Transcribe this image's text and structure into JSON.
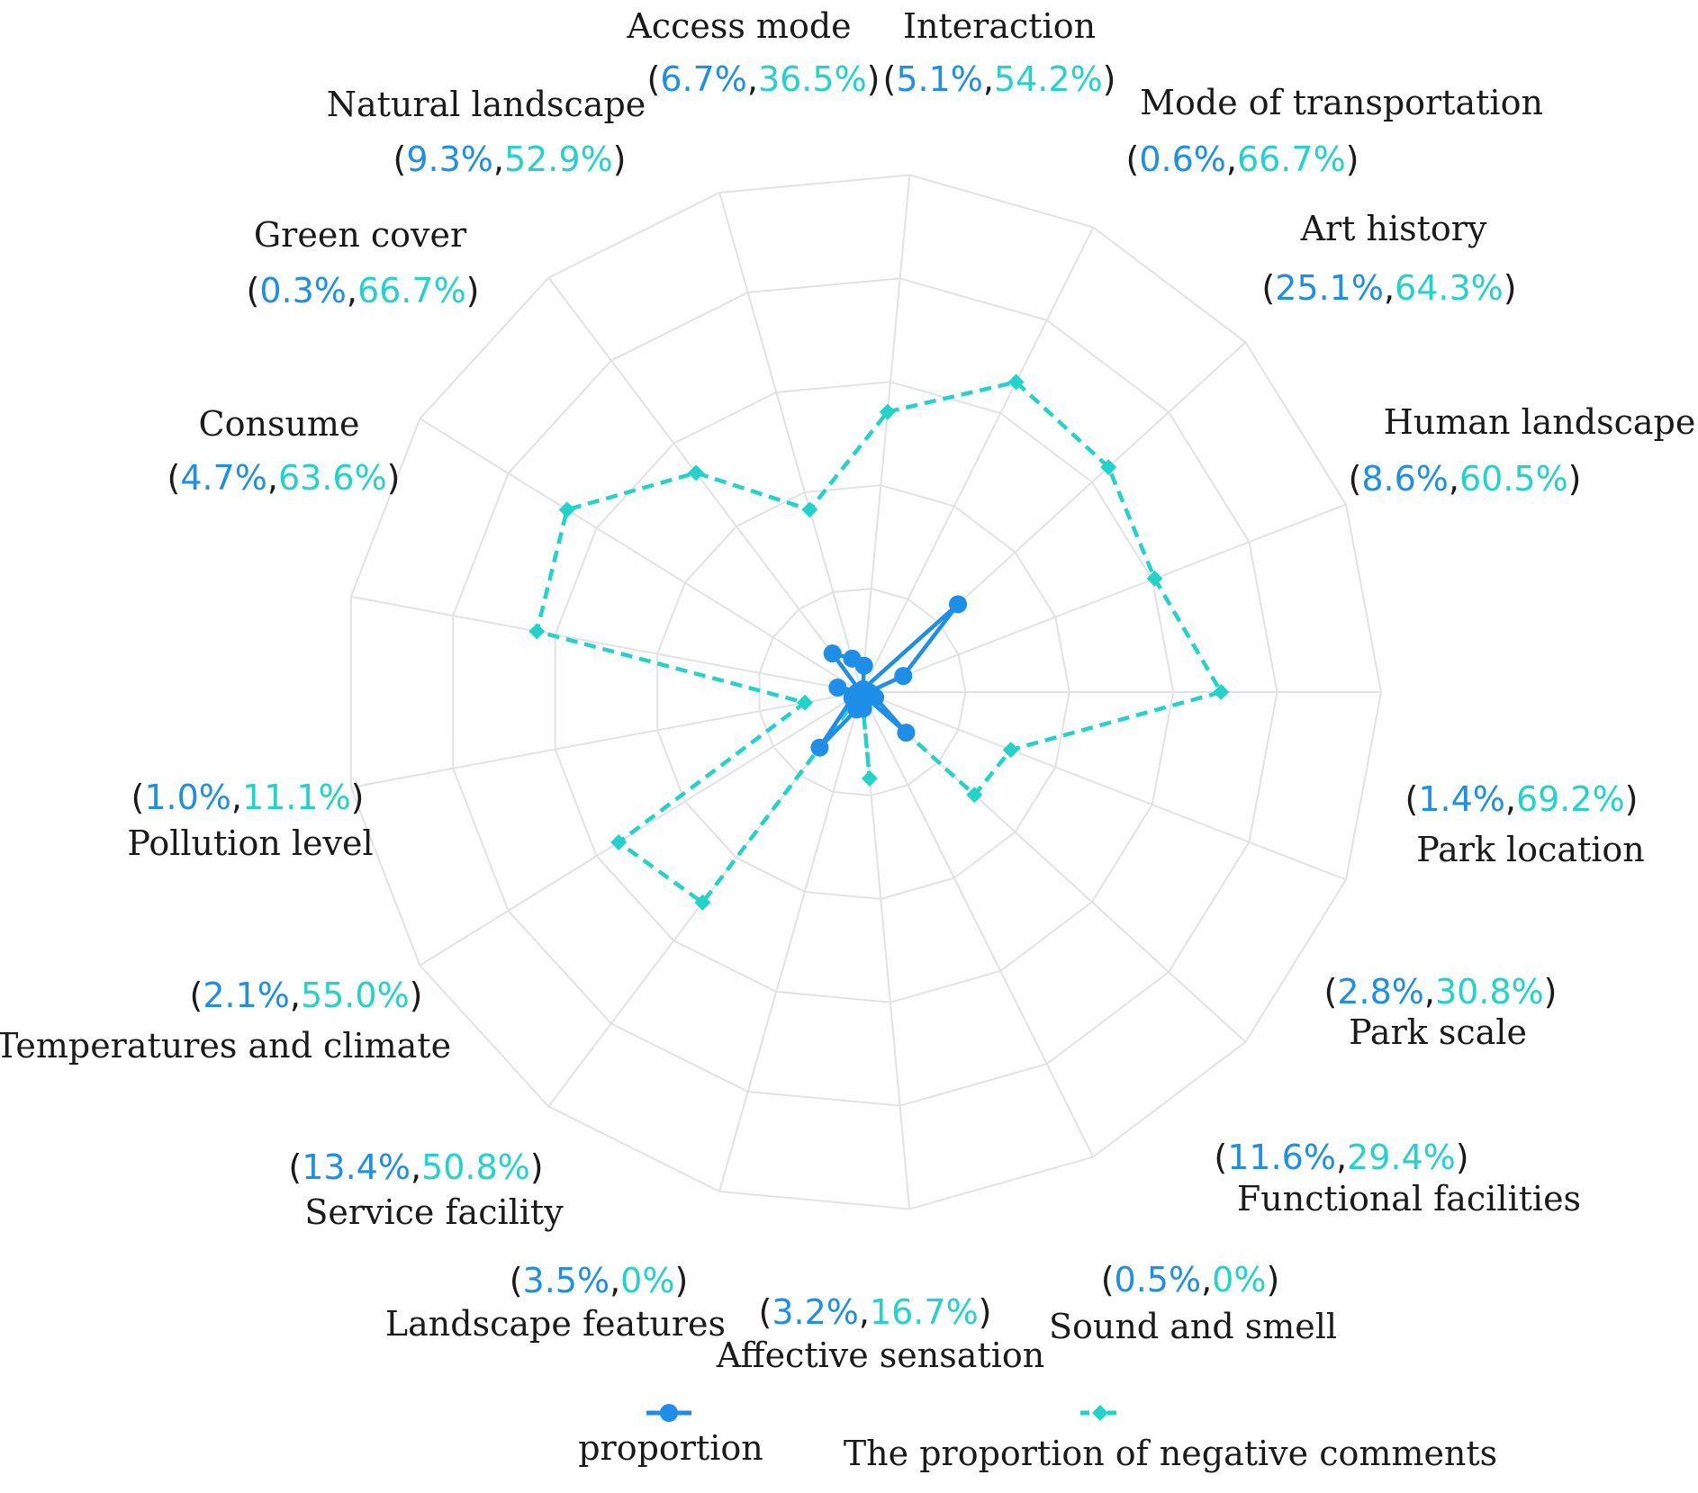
{
  "chart_data": {
    "type": "radar",
    "rlim": [
      0,
      100
    ],
    "rings": [
      20,
      40,
      60,
      80,
      100
    ],
    "colors": {
      "proportion": "#1e8fe8",
      "negative": "#22d3c9",
      "grid": "#e2e2e2"
    },
    "series": [
      {
        "name": "proportion",
        "style": "solid-circle"
      },
      {
        "name": "The proportion of negative comments",
        "style": "dashed-diamond"
      }
    ],
    "categories": [
      {
        "name": "Interaction",
        "proportion": 5.1,
        "negative": 54.2,
        "proportion_label": "5.1%",
        "negative_label": "54.2%"
      },
      {
        "name": "Mode of transportation",
        "proportion": 0.6,
        "negative": 66.7,
        "proportion_label": "0.6%",
        "negative_label": "66.7%"
      },
      {
        "name": "Art history",
        "proportion": 25.1,
        "negative": 64.3,
        "proportion_label": "25.1%",
        "negative_label": "64.3%"
      },
      {
        "name": "Human landscape",
        "proportion": 8.6,
        "negative": 60.5,
        "proportion_label": "8.6%",
        "negative_label": "60.5%"
      },
      {
        "name": "Park location",
        "proportion": 1.4,
        "negative": 69.2,
        "proportion_label": "1.4%",
        "negative_label": "69.2%"
      },
      {
        "name": "Park scale",
        "proportion": 2.8,
        "negative": 30.8,
        "proportion_label": "2.8%",
        "negative_label": "30.8%"
      },
      {
        "name": "Functional facilities",
        "proportion": 11.6,
        "negative": 29.4,
        "proportion_label": "11.6%",
        "negative_label": "29.4%"
      },
      {
        "name": "Sound and smell",
        "proportion": 0.5,
        "negative": 0,
        "proportion_label": "0.5%",
        "negative_label": "0%"
      },
      {
        "name": "Affective sensation",
        "proportion": 3.2,
        "negative": 16.7,
        "proportion_label": "3.2%",
        "negative_label": "16.7%"
      },
      {
        "name": "Landscape features",
        "proportion": 3.5,
        "negative": 0,
        "proportion_label": "3.5%",
        "negative_label": "0%"
      },
      {
        "name": "Service facility",
        "proportion": 13.4,
        "negative": 50.8,
        "proportion_label": "13.4%",
        "negative_label": "50.8%"
      },
      {
        "name": "Temperatures and climate",
        "proportion": 2.1,
        "negative": 55.0,
        "proportion_label": "2.1%",
        "negative_label": "55.0%"
      },
      {
        "name": "Pollution level",
        "proportion": 1.0,
        "negative": 11.1,
        "proportion_label": "1.0%",
        "negative_label": "11.1%"
      },
      {
        "name": "Consume",
        "proportion": 4.7,
        "negative": 63.6,
        "proportion_label": "4.7%",
        "negative_label": "63.6%"
      },
      {
        "name": "Green cover",
        "proportion": 0.3,
        "negative": 66.7,
        "proportion_label": "0.3%",
        "negative_label": "66.7%"
      },
      {
        "name": "Natural landscape",
        "proportion": 9.3,
        "negative": 52.9,
        "proportion_label": "9.3%",
        "negative_label": "52.9%"
      },
      {
        "name": "Access mode",
        "proportion": 6.7,
        "negative": 36.5,
        "proportion_label": "6.7%",
        "negative_label": "36.5%"
      }
    ],
    "legend": [
      {
        "label": "proportion"
      },
      {
        "label": "The proportion of negative comments"
      }
    ]
  }
}
